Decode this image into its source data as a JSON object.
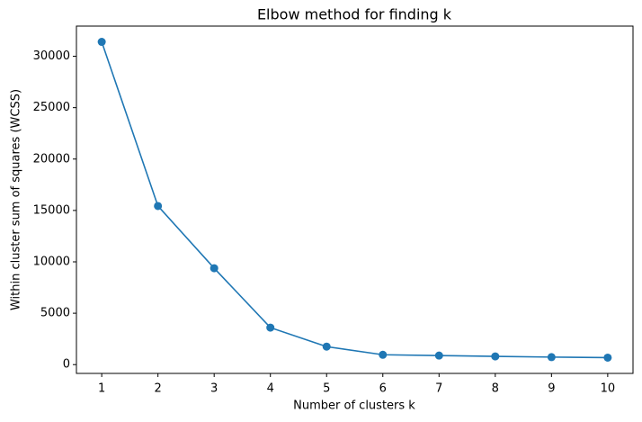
{
  "chart_data": {
    "type": "line",
    "title": "Elbow method for finding k",
    "x_label": "Number of clusters k",
    "y_label": "Within cluster sum of squares (WCSS)",
    "x": [
      1,
      2,
      3,
      4,
      5,
      6,
      7,
      8,
      9,
      10
    ],
    "series": [
      {
        "name": "WCSS",
        "color": "#1f77b4",
        "values": [
          31400,
          15430,
          9380,
          3600,
          1750,
          960,
          880,
          800,
          730,
          680
        ]
      }
    ],
    "xlim": [
      0.55,
      10.45
    ],
    "xticks": [
      1,
      2,
      3,
      4,
      5,
      6,
      7,
      8,
      9,
      10
    ],
    "ylim": [
      -856,
      32936
    ],
    "yticks": [
      0,
      5000,
      10000,
      15000,
      20000,
      25000,
      30000
    ],
    "grid": false
  }
}
